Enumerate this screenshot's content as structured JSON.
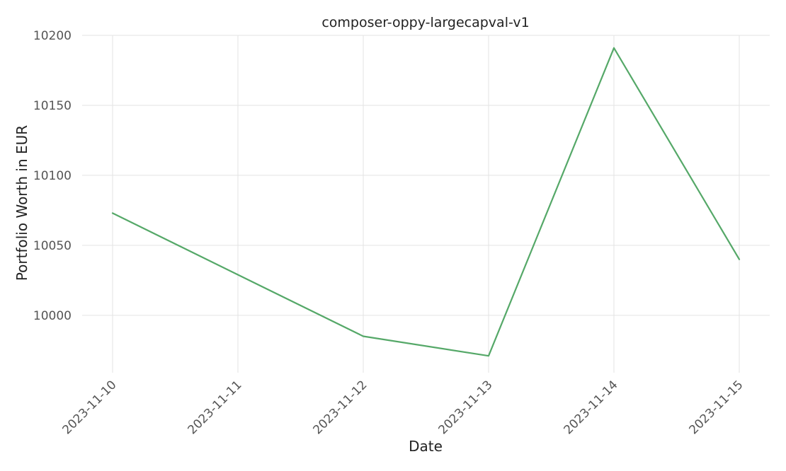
{
  "chart_data": {
    "type": "line",
    "title": "composer-oppy-largecapval-v1",
    "xlabel": "Date",
    "ylabel": "Portfolio Worth in EUR",
    "x": [
      "2023-11-10",
      "2023-11-11",
      "2023-11-12",
      "2023-11-13",
      "2023-11-14",
      "2023-11-15"
    ],
    "series": [
      {
        "values": [
          10073,
          10029,
          9985,
          9971,
          10191,
          10040
        ],
        "color": "#55a868"
      }
    ],
    "ylim": [
      9959,
      10200
    ],
    "yticks": [
      10000,
      10050,
      10100,
      10150,
      10200
    ],
    "grid": true,
    "legend": "none"
  }
}
